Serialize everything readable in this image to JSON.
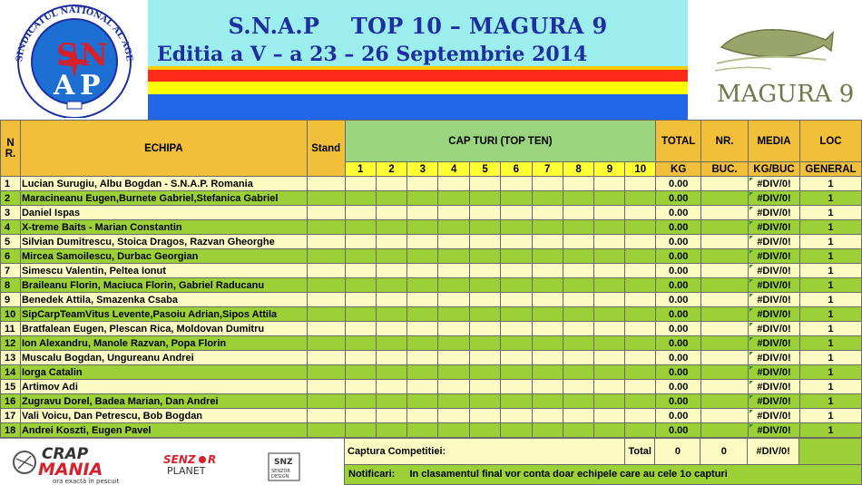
{
  "header": {
    "logo_left": {
      "name": "S.N.A.P. seal",
      "ring_text": "SINDICATUL NATIONAL AL AGENTILOR DE POLITIE",
      "letters": "SNAP"
    },
    "title_line1": "S.N.A.P    TOP 10 – MAGURA 9",
    "title_line2": "Editia a V – a 23 – 26 Septembrie 2014",
    "flag_colors": [
      "#ffcc00",
      "#ff2a1a",
      "#ffff00",
      "#2166e6"
    ],
    "logo_right_text": "MAGURA 9"
  },
  "columns": {
    "nr": "N R.",
    "echipa": "ECHIPA",
    "stand": "Stand",
    "cap_turi": "CAP TURI (TOP TEN)",
    "numbers": [
      "1",
      "2",
      "3",
      "4",
      "5",
      "6",
      "7",
      "8",
      "9",
      "10"
    ],
    "total_top": "TOTAL",
    "total_bottom": "KG",
    "nr_top": "NR.",
    "nr_bottom": "BUC.",
    "media_top": "MEDIA",
    "media_bottom": "KG/BUC",
    "loc_top": "LOC",
    "loc_bottom": "GENERAL"
  },
  "rows": [
    {
      "nr": "1",
      "echipa": "Lucian Surugiu, Albu Bogdan - S.N.A.P. Romania",
      "total": "0.00",
      "media": "#DIV/0!",
      "loc": "1"
    },
    {
      "nr": "2",
      "echipa": "Maracineanu Eugen,Burnete Gabriel,Stefanica Gabriel",
      "total": "0.00",
      "media": "#DIV/0!",
      "loc": "1"
    },
    {
      "nr": "3",
      "echipa": "Daniel Ispas",
      "total": "0.00",
      "media": "#DIV/0!",
      "loc": "1"
    },
    {
      "nr": "4",
      "echipa": "X-treme Baits - Marian Constantin",
      "total": "0.00",
      "media": "#DIV/0!",
      "loc": "1"
    },
    {
      "nr": "5",
      "echipa": "Silvian Dumitrescu, Stoica Dragos, Razvan Gheorghe",
      "total": "0.00",
      "media": "#DIV/0!",
      "loc": "1"
    },
    {
      "nr": "6",
      "echipa": "Mircea Samoilescu, Durbac Georgian",
      "total": "0.00",
      "media": "#DIV/0!",
      "loc": "1"
    },
    {
      "nr": "7",
      "echipa": "Simescu Valentin, Peltea Ionut",
      "total": "0.00",
      "media": "#DIV/0!",
      "loc": "1"
    },
    {
      "nr": "8",
      "echipa": "Braileanu Florin, Maciuca Florin, Gabriel Raducanu",
      "total": "0.00",
      "media": "#DIV/0!",
      "loc": "1"
    },
    {
      "nr": "9",
      "echipa": "Benedek Attila, Smazenka Csaba",
      "total": "0.00",
      "media": "#DIV/0!",
      "loc": "1"
    },
    {
      "nr": "10",
      "echipa": "SipCarpTeamVitus Levente,Pasoiu Adrian,Sipos Attila",
      "total": "0.00",
      "media": "#DIV/0!",
      "loc": "1"
    },
    {
      "nr": "11",
      "echipa": "Bratfalean Eugen, Plescan Rica, Moldovan Dumitru",
      "total": "0.00",
      "media": "#DIV/0!",
      "loc": "1"
    },
    {
      "nr": "12",
      "echipa": "Ion Alexandru, Manole Razvan, Popa Florin",
      "total": "0.00",
      "media": "#DIV/0!",
      "loc": "1"
    },
    {
      "nr": "13",
      "echipa": "Muscalu Bogdan, Ungureanu Andrei",
      "total": "0.00",
      "media": "#DIV/0!",
      "loc": "1"
    },
    {
      "nr": "14",
      "echipa": "Iorga Catalin",
      "total": "0.00",
      "media": "#DIV/0!",
      "loc": "1"
    },
    {
      "nr": "15",
      "echipa": "Artimov Adi",
      "total": "0.00",
      "media": "#DIV/0!",
      "loc": "1"
    },
    {
      "nr": "16",
      "echipa": "Zugravu Dorel, Badea Marian, Dan Andrei",
      "total": "0.00",
      "media": "#DIV/0!",
      "loc": "1"
    },
    {
      "nr": "17",
      "echipa": "Vali Voicu, Dan Petrescu, Bob Bogdan",
      "total": "0.00",
      "media": "#DIV/0!",
      "loc": "1"
    },
    {
      "nr": "18",
      "echipa": "Andrei Koszti, Eugen Pavel",
      "total": "0.00",
      "media": "#DIV/0!",
      "loc": "1"
    }
  ],
  "footer": {
    "sponsors": [
      "CRAP MANIA",
      "ora exactă în pescuit",
      "SENZOR PLANET",
      "SNZ SENZOR DESIGN"
    ],
    "captura_label": "Captura Competitiei:",
    "total_label": "Total",
    "total_kg": "0",
    "total_buc": "0",
    "total_media": "#DIV/0!",
    "notificari_label": "Notificari:",
    "notificari_text": "In clasamentul final vor conta doar echipele care au cele 1o capturi"
  }
}
